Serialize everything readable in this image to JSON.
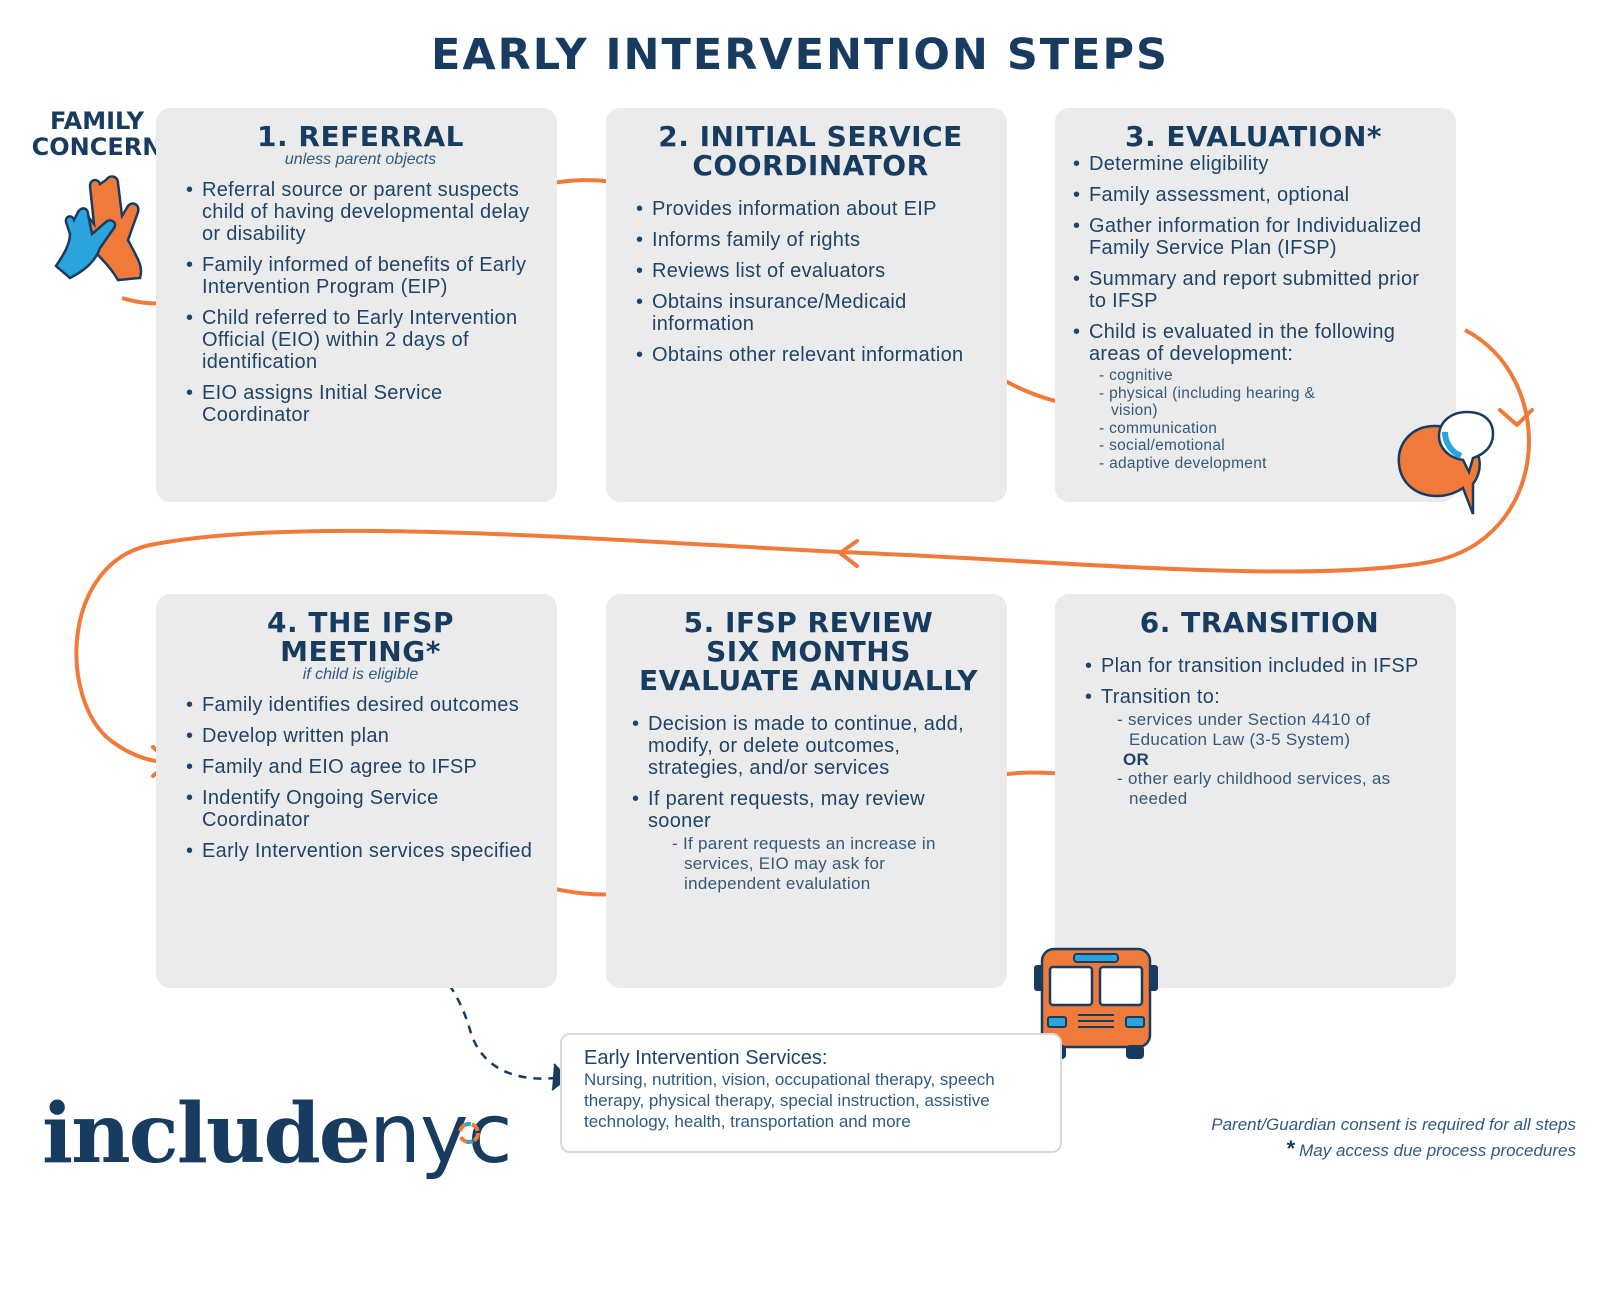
{
  "title": "EARLY INTERVENTION STEPS",
  "family_concern": "FAMILY CONCERN",
  "colors": {
    "navy": "#173c5f",
    "orange": "#f07a3a",
    "card": "#ebebeb",
    "blue": "#2ba3dc"
  },
  "steps": [
    {
      "title": "1. REFERRAL",
      "subtitle": "unless parent objects",
      "items": [
        "Referral source or parent suspects child of having developmental delay or disability",
        "Family informed of benefits of Early Intervention Program (EIP)",
        "Child referred to Early Intervention Official (EIO) within 2 days of identification",
        "EIO assigns Initial Service Coordinator"
      ]
    },
    {
      "title": "2. INITIAL SERVICE COORDINATOR",
      "items": [
        "Provides information about EIP",
        "Informs family of rights",
        "Reviews list of evaluators",
        "Obtains insurance/Medicaid information",
        "Obtains other relevant information"
      ]
    },
    {
      "title": "3. EVALUATION*",
      "items": [
        "Determine eligibility",
        "Family assessment, optional",
        "Gather information for Individualized Family Service Plan (IFSP)",
        "Summary and report submitted prior to IFSP",
        "Child is evaluated in the following areas of development:"
      ],
      "subitems": [
        "cognitive",
        "physical (including hearing & vision)",
        "communication",
        "social/emotional",
        "adaptive development"
      ]
    },
    {
      "title": "4. THE IFSP MEETING*",
      "subtitle": "if child is eligible",
      "items": [
        "Family identifies desired outcomes",
        "Develop written plan",
        "Family and EIO agree to IFSP",
        "Indentify Ongoing Service Coordinator",
        "Early Intervention services specified"
      ]
    },
    {
      "title": "5. IFSP REVIEW SIX MONTHS EVALUATE ANNUALLY",
      "title_lines": [
        "5. IFSP REVIEW",
        "SIX MONTHS",
        "EVALUATE ANNUALLY"
      ],
      "items": [
        "Decision is made to continue, add, modify, or delete outcomes, strategies, and/or services",
        "If parent requests, may review sooner"
      ],
      "subitems": [
        "If parent requests an increase in services, EIO may ask for independent evalulation"
      ]
    },
    {
      "title": "6. TRANSITION",
      "items": [
        "Plan for transition included in IFSP",
        "Transition to:"
      ],
      "sub_a": "services under Section 4410 of Education Law (3-5 System)",
      "or_label": "OR",
      "sub_b": "other early childhood services, as needed"
    }
  ],
  "services_box": {
    "heading": "Early Intervention Services:",
    "body": "Nursing, nutrition, vision, occupational therapy, speech therapy, physical therapy, special instruction, assistive technology, health, transportation and more"
  },
  "logo": {
    "part1": "include",
    "part2": "nyc"
  },
  "footnotes": {
    "consent": "Parent/Guardian consent is required for all steps",
    "asterisk": "*",
    "due_process": "May access due process procedures"
  }
}
